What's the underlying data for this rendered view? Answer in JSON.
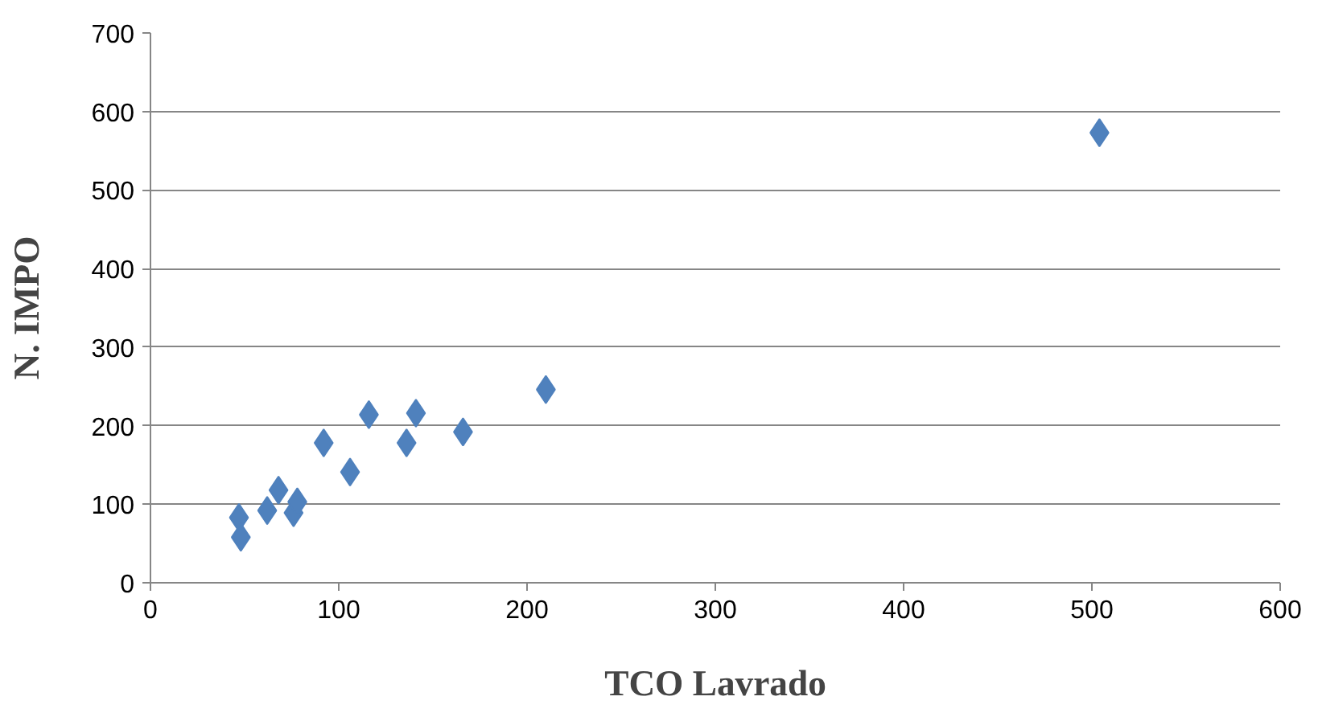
{
  "chart_data": {
    "type": "scatter",
    "xlabel": "TCO Lavrado",
    "ylabel": "N. IMPO",
    "x": [
      47,
      48,
      62,
      68,
      76,
      78,
      92,
      106,
      116,
      136,
      141,
      166,
      210,
      504
    ],
    "values": [
      83,
      58,
      92,
      118,
      89,
      103,
      178,
      141,
      214,
      178,
      216,
      192,
      246,
      573
    ],
    "color": "#4f81bd",
    "marker": "diamond",
    "xlim": [
      0,
      600
    ],
    "xticks": [
      0,
      100,
      200,
      300,
      400,
      500,
      600
    ],
    "ylim": [
      0,
      700
    ],
    "yticks": [
      0,
      100,
      200,
      300,
      400,
      500,
      600,
      700
    ],
    "grid": "y"
  }
}
